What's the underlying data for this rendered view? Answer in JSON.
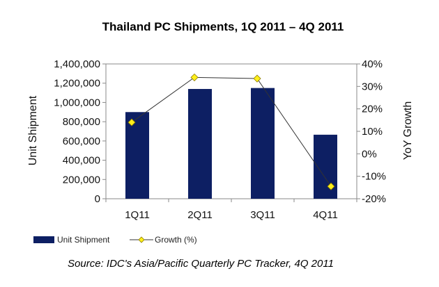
{
  "chart_data": {
    "type": "bar",
    "title": "Thailand PC Shipments, 1Q 2011 – 4Q 2011",
    "categories": [
      "1Q11",
      "2Q11",
      "3Q11",
      "4Q11"
    ],
    "series": [
      {
        "name": "Unit Shipment",
        "type": "bar",
        "axis": "left",
        "color": "#0d1f63",
        "values": [
          900000,
          1140000,
          1150000,
          665000
        ]
      },
      {
        "name": "Growth (%)",
        "type": "line",
        "axis": "right",
        "color": "#ffef1a",
        "line_color": "#333333",
        "values": [
          14,
          34,
          33.5,
          -14.5
        ]
      }
    ],
    "ylabel": "Unit Shipment",
    "ylabel_right": "YoY Growth",
    "ylim": [
      0,
      1400000
    ],
    "ylim_right": [
      -20,
      40
    ],
    "yticks": [
      "0",
      "200,000",
      "400,000",
      "600,000",
      "800,000",
      "1,000,000",
      "1,200,000",
      "1,400,000"
    ],
    "yticks_right": [
      "-20%",
      "-10%",
      "0%",
      "10%",
      "20%",
      "30%",
      "40%"
    ],
    "grid": false,
    "legend_position": "bottom-left"
  },
  "source_text": "Source: IDC's Asia/Pacific Quarterly PC Tracker, 4Q 2011"
}
